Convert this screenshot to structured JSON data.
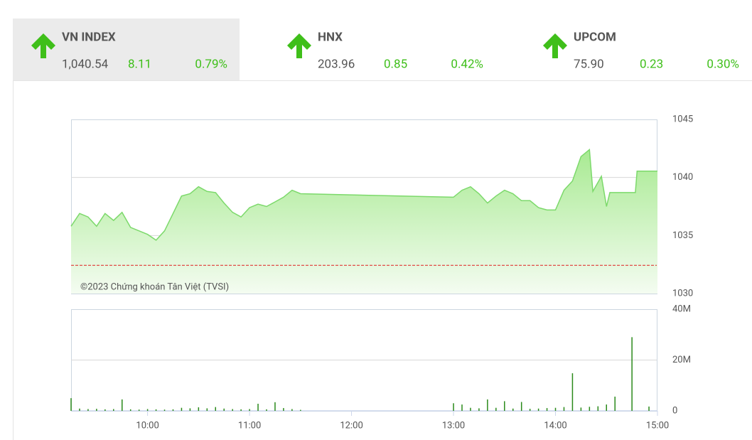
{
  "indices": [
    {
      "name": "VN INDEX",
      "value": "1,040.54",
      "change": "8.11",
      "change_pct": "0.79%"
    },
    {
      "name": "HNX",
      "value": "203.96",
      "change": "0.85",
      "change_pct": "0.42%"
    },
    {
      "name": "UPCOM",
      "value": "75.90",
      "change": "0.23",
      "change_pct": "0.30%"
    }
  ],
  "chart_data": [
    {
      "type": "area",
      "color": "#7cd96b",
      "annotation": "©2023 Chứng khoán Tân Việt (TVSI)",
      "reference_line": 1032.43,
      "reference_color": "#e02020",
      "xlim": [
        "09:15",
        "15:00"
      ],
      "ylim": [
        1030,
        1045
      ],
      "yticks": [
        1030,
        1035,
        1040,
        1045
      ],
      "grid": true,
      "x": [
        "09:15",
        "09:20",
        "09:25",
        "09:30",
        "09:35",
        "09:40",
        "09:45",
        "09:50",
        "09:55",
        "10:00",
        "10:05",
        "10:10",
        "10:15",
        "10:20",
        "10:25",
        "10:30",
        "10:35",
        "10:40",
        "10:45",
        "10:50",
        "10:55",
        "11:00",
        "11:05",
        "11:10",
        "11:15",
        "11:20",
        "11:25",
        "11:30",
        "13:00",
        "13:05",
        "13:10",
        "13:15",
        "13:20",
        "13:25",
        "13:30",
        "13:35",
        "13:40",
        "13:45",
        "13:50",
        "13:55",
        "14:00",
        "14:05",
        "14:10",
        "14:15",
        "14:20",
        "14:22",
        "14:27",
        "14:30",
        "14:32",
        "14:47",
        "14:48",
        "15:00"
      ],
      "values": [
        1035.8,
        1036.9,
        1036.6,
        1035.8,
        1036.9,
        1036.3,
        1037.0,
        1035.7,
        1035.4,
        1035.1,
        1034.6,
        1035.4,
        1036.9,
        1038.4,
        1038.6,
        1039.2,
        1038.8,
        1038.7,
        1037.8,
        1037.0,
        1036.6,
        1037.4,
        1037.7,
        1037.5,
        1037.9,
        1038.3,
        1038.9,
        1038.6,
        1038.3,
        1038.9,
        1039.2,
        1038.6,
        1037.8,
        1038.4,
        1038.9,
        1038.6,
        1038.0,
        1038.0,
        1037.4,
        1037.2,
        1037.2,
        1038.9,
        1039.7,
        1041.8,
        1042.4,
        1038.8,
        1040.1,
        1037.5,
        1038.7,
        1038.7,
        1040.54,
        1040.54
      ]
    },
    {
      "type": "bar",
      "color": "#2a8a1a",
      "xlim": [
        "09:15",
        "15:00"
      ],
      "xticks": [
        "10:00",
        "11:00",
        "12:00",
        "13:00",
        "14:00",
        "15:00"
      ],
      "ylim": [
        0,
        40000000
      ],
      "yticks": [
        0,
        {
          "value": 20000000,
          "label": "20M"
        },
        {
          "value": 40000000,
          "label": "40M"
        }
      ],
      "grid": true,
      "x": [
        "09:15",
        "09:20",
        "09:25",
        "09:30",
        "09:35",
        "09:40",
        "09:45",
        "09:50",
        "09:55",
        "10:00",
        "10:05",
        "10:10",
        "10:15",
        "10:20",
        "10:25",
        "10:30",
        "10:35",
        "10:40",
        "10:45",
        "10:50",
        "10:55",
        "11:00",
        "11:05",
        "11:10",
        "11:15",
        "11:20",
        "11:25",
        "11:30",
        "13:00",
        "13:05",
        "13:10",
        "13:15",
        "13:20",
        "13:25",
        "13:30",
        "13:35",
        "13:40",
        "13:45",
        "13:50",
        "13:55",
        "14:00",
        "14:05",
        "14:10",
        "14:15",
        "14:20",
        "14:25",
        "14:30",
        "14:35",
        "14:45",
        "14:55"
      ],
      "values": [
        5000000,
        900000,
        700000,
        800000,
        600000,
        700000,
        4500000,
        600000,
        500000,
        700000,
        600000,
        500000,
        600000,
        1200000,
        1000000,
        1400000,
        1000000,
        1500000,
        900000,
        700000,
        600000,
        700000,
        2800000,
        600000,
        3400000,
        1100000,
        700000,
        400000,
        3000000,
        2500000,
        1200000,
        1000000,
        4500000,
        1200000,
        3800000,
        900000,
        3500000,
        800000,
        900000,
        1100000,
        1200000,
        1500000,
        14800000,
        1300000,
        1600000,
        1800000,
        2500000,
        5600000,
        29000000,
        1700000
      ]
    }
  ]
}
